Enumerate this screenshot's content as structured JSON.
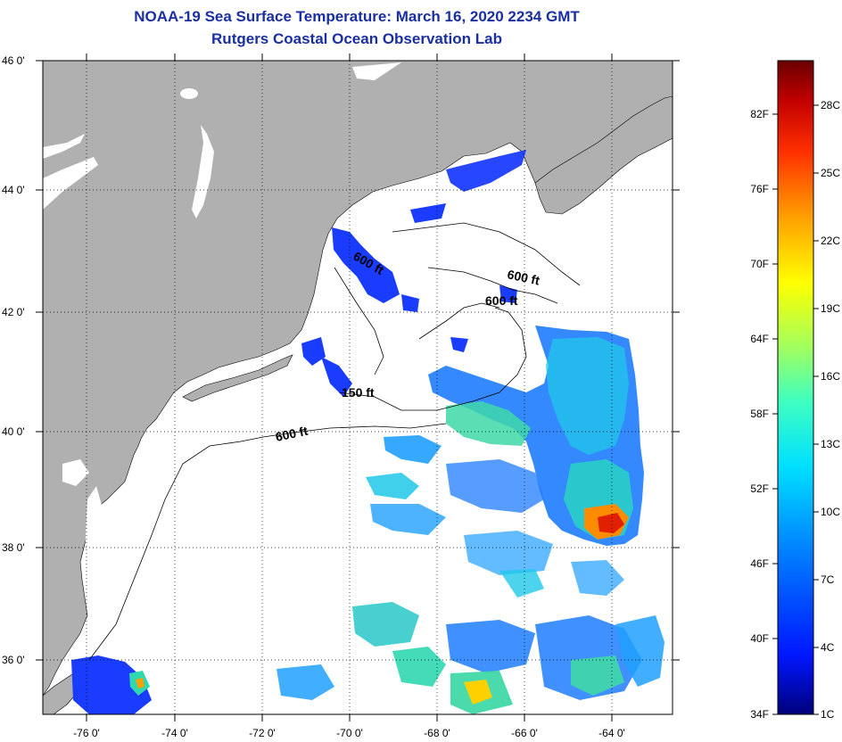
{
  "title": {
    "line1": "NOAA-19 Sea Surface Temperature:  March 16, 2020 2234 GMT",
    "line2": "Rutgers Coastal Ocean Observation Lab"
  },
  "axes": {
    "lat_labels": [
      "46 0'",
      "44 0'",
      "42 0'",
      "40 0'",
      "38 0'",
      "36 0'"
    ],
    "lon_labels": [
      "-76 0'",
      "-74 0'",
      "-72 0'",
      "-70 0'",
      "-68 0'",
      "-66 0'",
      "-64 0'"
    ]
  },
  "contour_labels": [
    "600 ft",
    "600 ft",
    "600 ft",
    "150 ft",
    "600 ft"
  ],
  "colorbar": {
    "fahrenheit": [
      "82F",
      "76F",
      "70F",
      "64F",
      "58F",
      "52F",
      "46F",
      "40F",
      "34F"
    ],
    "celsius": [
      "28C",
      "25C",
      "22C",
      "19C",
      "16C",
      "13C",
      "10C",
      "7C",
      "4C",
      "1C"
    ],
    "colors": [
      "#00007a",
      "#0016ff",
      "#0080ff",
      "#00e0ff",
      "#40ffc0",
      "#a0ff60",
      "#ffff00",
      "#ffa000",
      "#ff3000",
      "#c00000",
      "#6a0000"
    ]
  },
  "colors": {
    "land": "#b0b0b0",
    "ocean": "#ffffff",
    "title": "#1a2fa0"
  },
  "chart_data": {
    "type": "heatmap",
    "title": "NOAA-19 Sea Surface Temperature:  March 16, 2020 2234 GMT",
    "subtitle": "Rutgers Coastal Ocean Observation Lab",
    "xlabel": "",
    "ylabel": "",
    "xlim": [
      -77,
      -62.6
    ],
    "ylim": [
      35,
      46
    ],
    "x_ticks": [
      -76,
      -74,
      -72,
      -70,
      -68,
      -66,
      -64
    ],
    "y_ticks": [
      36,
      38,
      40,
      42,
      44,
      46
    ],
    "colorbar_range_F": [
      34,
      88
    ],
    "colorbar_range_C": [
      1,
      31
    ],
    "grid": true
  }
}
